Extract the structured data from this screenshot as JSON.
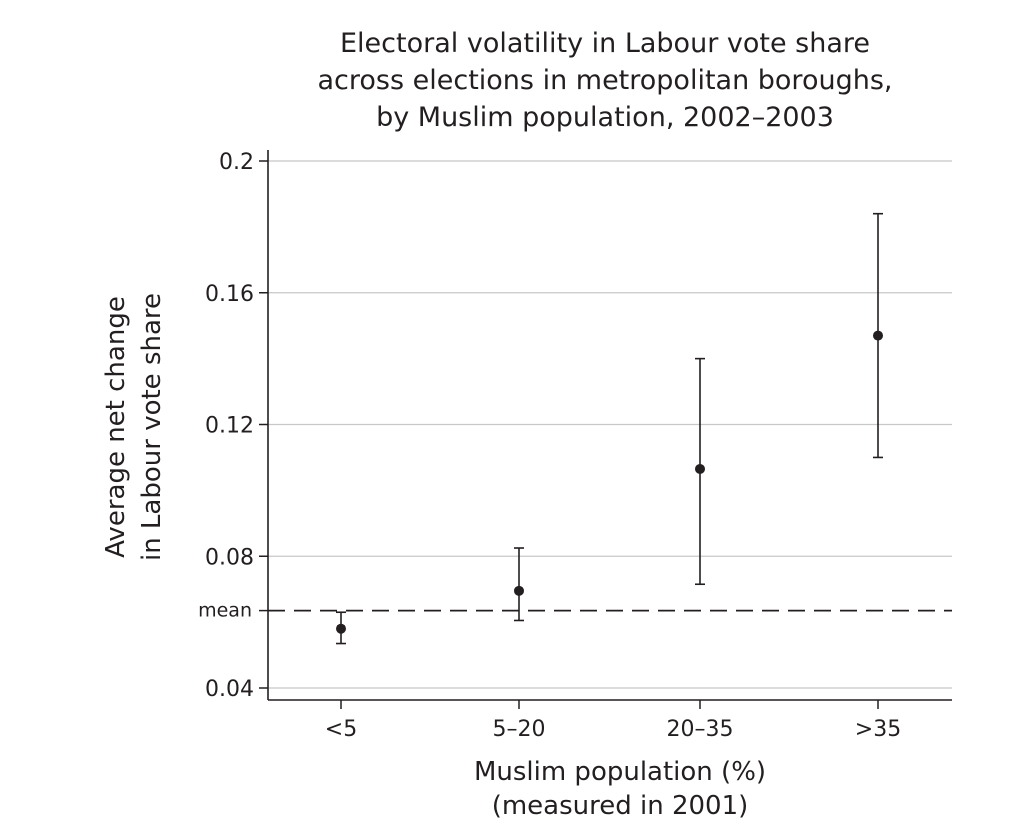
{
  "chart_data": {
    "type": "scatter",
    "title": [
      "Electoral volatility in Labour vote share",
      "across elections in metropolitan boroughs,",
      "by Muslim population, 2002–2003"
    ],
    "xlabel": [
      "Muslim population (%)",
      "(measured in 2001)"
    ],
    "ylabel": [
      "Average net change",
      "in Labour vote share"
    ],
    "categories": [
      "<5",
      "5–20",
      "20–35",
      ">35"
    ],
    "y_ticks": [
      0.04,
      0.08,
      0.12,
      0.16,
      0.2
    ],
    "y_tick_labels": [
      "0.04",
      "0.08",
      "0.12",
      "0.16",
      "0.2"
    ],
    "ylim": [
      0.036,
      0.2
    ],
    "grid": true,
    "mean": {
      "label": "mean",
      "value": 0.0635
    },
    "points": [
      {
        "category": "<5",
        "value": 0.058,
        "lower": 0.0535,
        "upper": 0.063
      },
      {
        "category": "5–20",
        "value": 0.0695,
        "lower": 0.0605,
        "upper": 0.0825
      },
      {
        "category": "20–35",
        "value": 0.1065,
        "lower": 0.0715,
        "upper": 0.14
      },
      {
        "category": ">35",
        "value": 0.147,
        "lower": 0.11,
        "upper": 0.184
      }
    ],
    "colors": {
      "ink": "#231f20",
      "grid": "#c8c8c8"
    }
  }
}
